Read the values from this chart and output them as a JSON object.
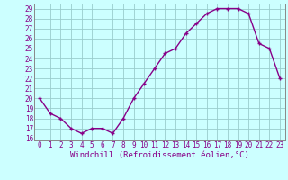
{
  "x": [
    0,
    1,
    2,
    3,
    4,
    5,
    6,
    7,
    8,
    9,
    10,
    11,
    12,
    13,
    14,
    15,
    16,
    17,
    18,
    19,
    20,
    21,
    22,
    23
  ],
  "y": [
    20,
    18.5,
    18,
    17,
    16.5,
    17,
    17,
    16.5,
    18,
    20,
    21.5,
    23,
    24.5,
    25,
    26.5,
    27.5,
    28.5,
    29,
    29,
    29,
    28.5,
    25.5,
    25,
    22
  ],
  "line_color": "#880088",
  "marker": "+",
  "marker_size": 3,
  "background_color": "#ccffff",
  "grid_color": "#99cccc",
  "xlabel": "Windchill (Refroidissement éolien,°C)",
  "ylim_min": 16,
  "ylim_max": 29.5,
  "yticks": [
    16,
    17,
    18,
    19,
    20,
    21,
    22,
    23,
    24,
    25,
    26,
    27,
    28,
    29
  ],
  "xticks": [
    0,
    1,
    2,
    3,
    4,
    5,
    6,
    7,
    8,
    9,
    10,
    11,
    12,
    13,
    14,
    15,
    16,
    17,
    18,
    19,
    20,
    21,
    22,
    23
  ],
  "tick_label_fontsize": 5.5,
  "xlabel_fontsize": 6.5,
  "line_width": 1.0,
  "marker_edge_width": 1.0
}
